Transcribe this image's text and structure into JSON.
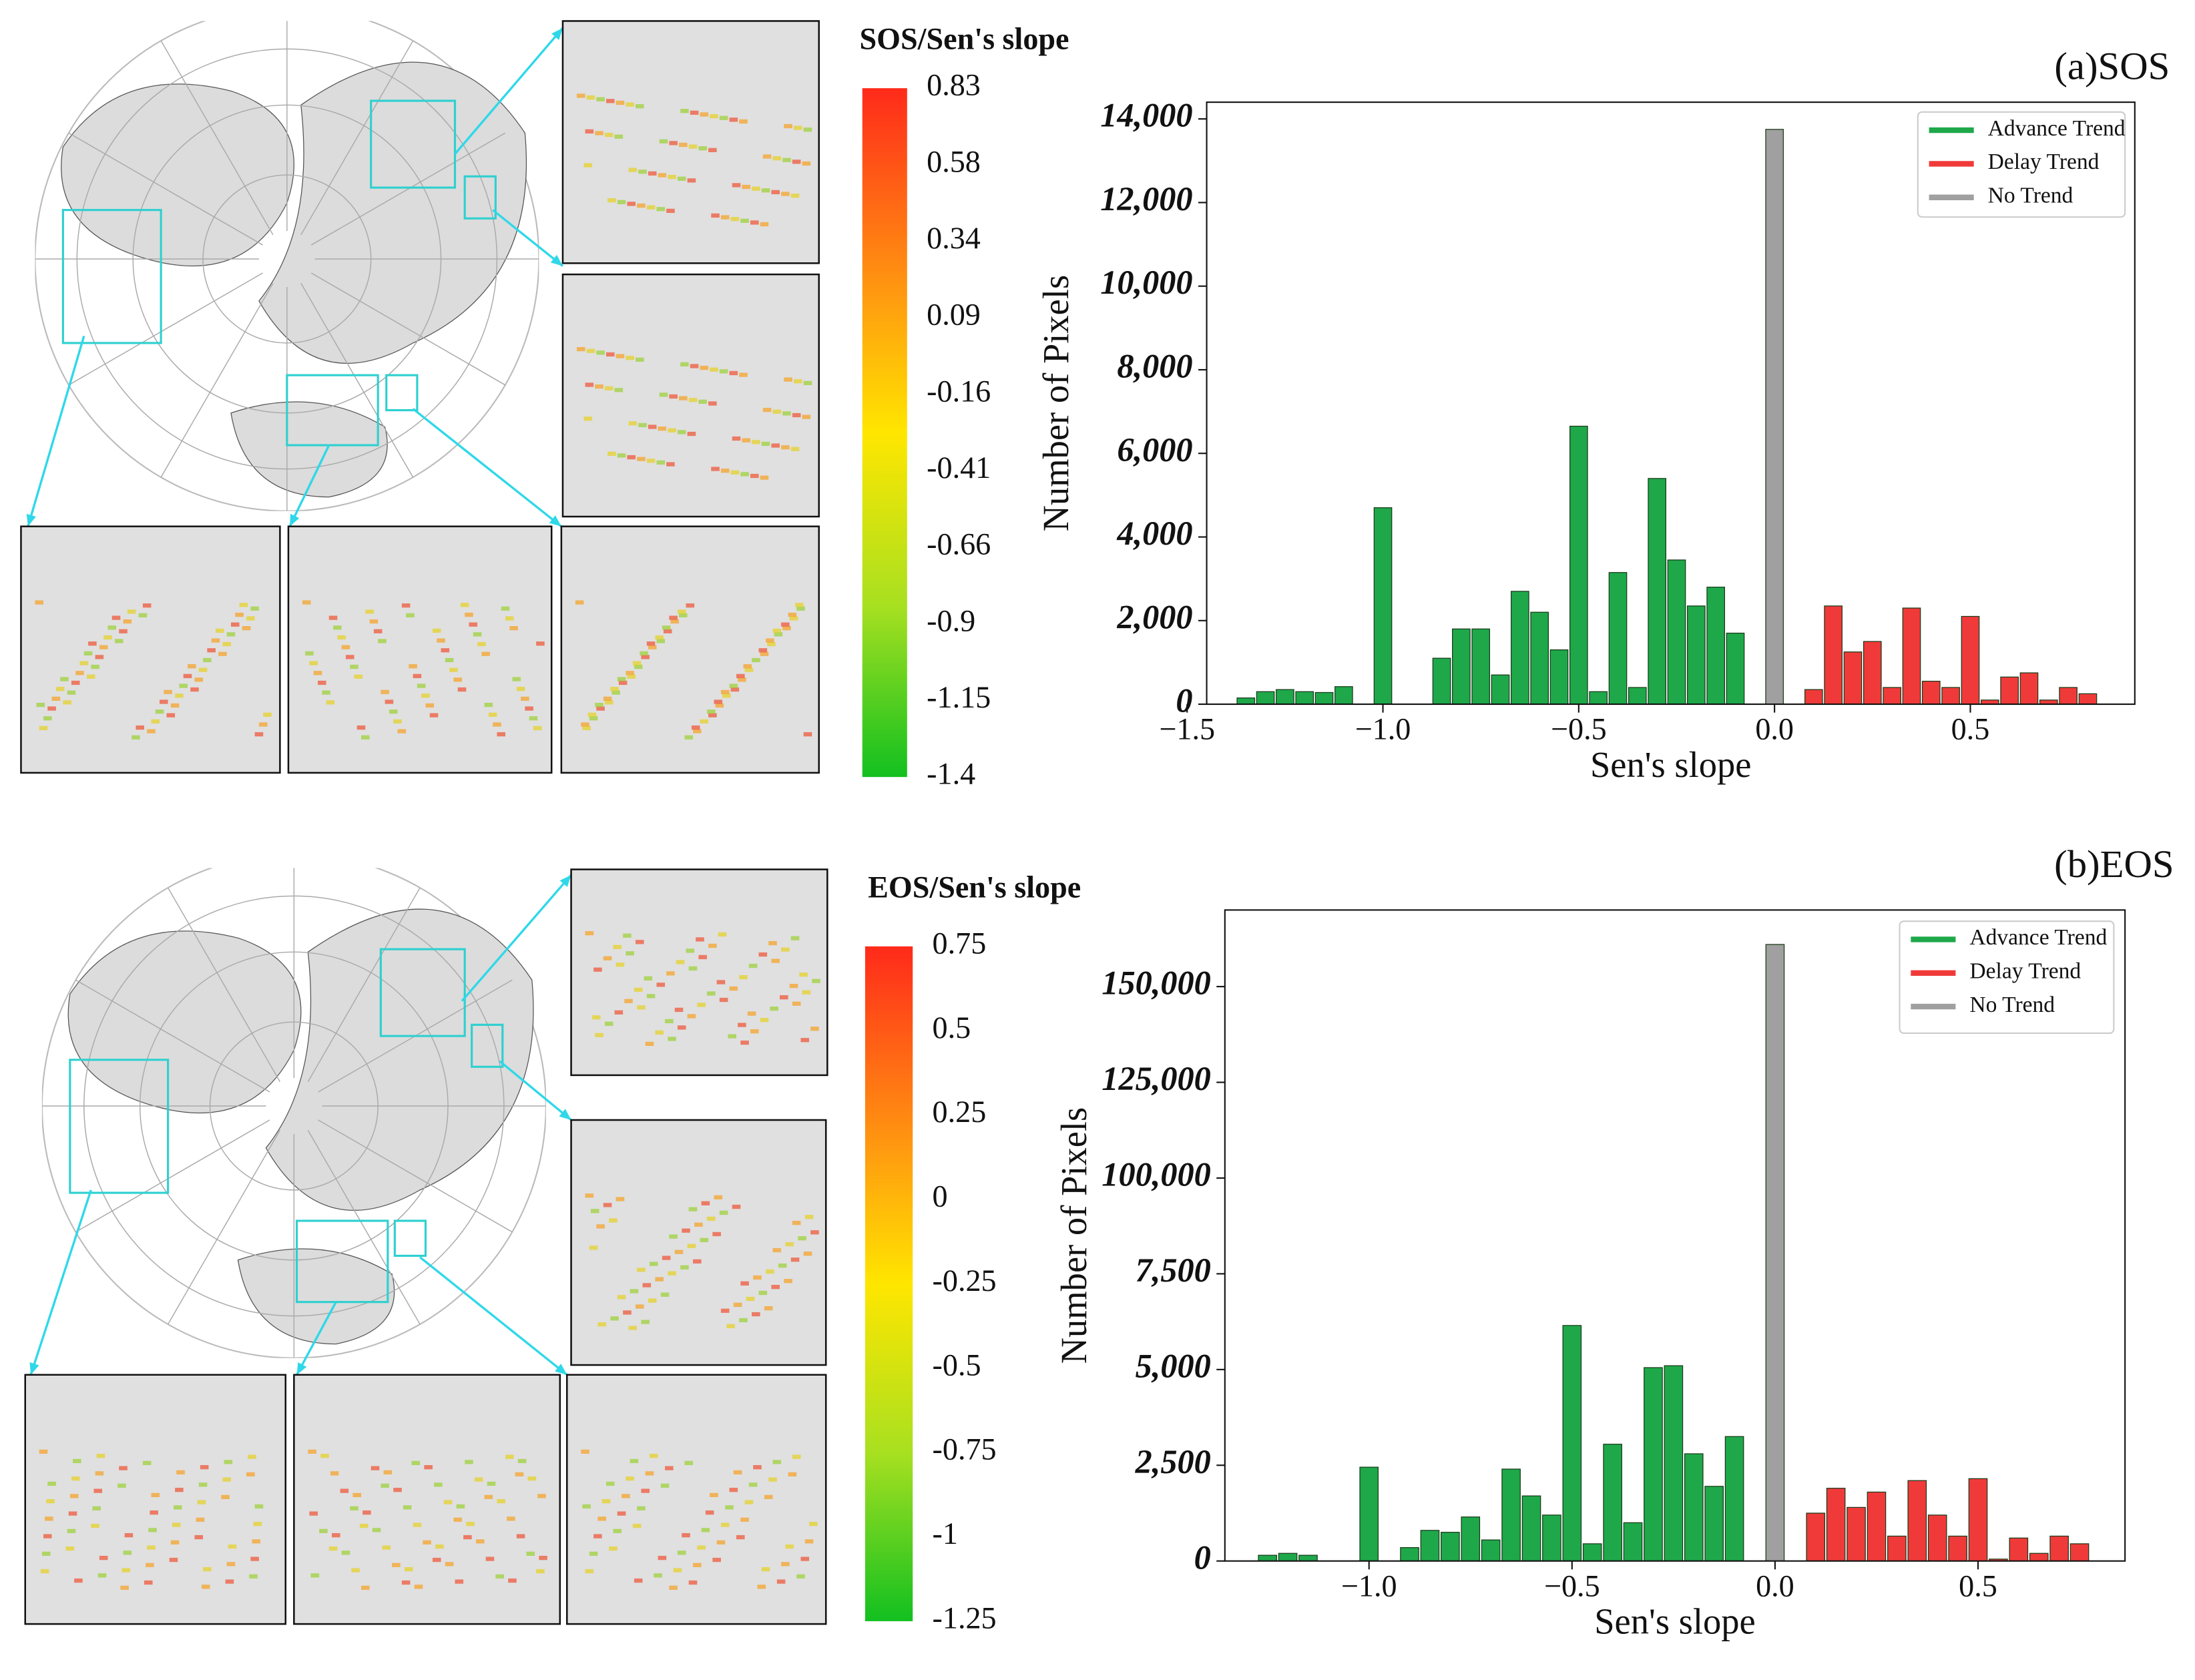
{
  "chart_data": [
    {
      "type": "bar",
      "title": "(a)SOS",
      "xlabel": "Sen's slope",
      "ylabel": "Number of Pixels",
      "xlim": [
        -1.45,
        0.92
      ],
      "xticks": [
        {
          "value": -1.5,
          "label": "−1.5"
        },
        {
          "value": -1.0,
          "label": "−1.0"
        },
        {
          "value": -0.5,
          "label": "−0.5"
        },
        {
          "value": 0.0,
          "label": "0.0"
        },
        {
          "value": 0.5,
          "label": "0.5"
        }
      ],
      "ylim": [
        0,
        14400
      ],
      "yticks": [
        0,
        {
          "value": 2000,
          "label": "2,000"
        },
        {
          "value": 4000,
          "label": "4,000"
        },
        {
          "value": 6000,
          "label": "6,000"
        },
        {
          "value": 8000,
          "label": "8,000"
        },
        {
          "value": 10000,
          "label": "10,000"
        },
        {
          "value": 12000,
          "label": "12,000"
        },
        {
          "value": 14000,
          "label": "14,000"
        }
      ],
      "legend": "upper right",
      "series": [
        {
          "name": "Advance Trend",
          "color": "#1ea84a",
          "x": [
            -1.35,
            -1.3,
            -1.25,
            -1.2,
            -1.15,
            -1.1,
            -1.0,
            -0.85,
            -0.8,
            -0.75,
            -0.7,
            -0.65,
            -0.6,
            -0.55,
            -0.5,
            -0.45,
            -0.4,
            -0.35,
            -0.3,
            -0.25,
            -0.2,
            -0.15,
            -0.1
          ],
          "values": [
            150,
            300,
            350,
            300,
            280,
            420,
            4700,
            1100,
            1800,
            1800,
            700,
            2700,
            2200,
            1300,
            6650,
            300,
            3150,
            400,
            5400,
            3450,
            2350,
            2800,
            1700
          ]
        },
        {
          "name": "Delay Trend",
          "color": "#f03a3a",
          "x": [
            0.1,
            0.15,
            0.2,
            0.25,
            0.3,
            0.35,
            0.4,
            0.45,
            0.5,
            0.55,
            0.6,
            0.65,
            0.7,
            0.75,
            0.8
          ],
          "values": [
            350,
            2350,
            1250,
            1500,
            400,
            2300,
            550,
            400,
            2100,
            100,
            650,
            750,
            100,
            400,
            250
          ]
        },
        {
          "name": "No Trend",
          "color": "#a0a0a0",
          "x": [
            0.0
          ],
          "values": [
            13750
          ]
        }
      ]
    },
    {
      "type": "bar",
      "title": "(b)EOS",
      "xlabel": "Sen's slope",
      "ylabel": "Number of Pixels",
      "xlim": [
        -1.355,
        0.862
      ],
      "xticks": [
        {
          "value": -1.0,
          "label": "−1.0"
        },
        {
          "value": -0.5,
          "label": "−0.5"
        },
        {
          "value": 0.0,
          "label": "0.0"
        },
        {
          "value": 0.5,
          "label": "0.5"
        }
      ],
      "ylim": [
        0,
        170000
      ],
      "yticks": [
        0,
        {
          "value": 2500,
          "label": "2,500"
        },
        {
          "value": 5000,
          "label": "5,000"
        },
        {
          "value": 7500,
          "label": "7,500"
        },
        {
          "value": 100000,
          "label": "100,000"
        },
        {
          "value": 125000,
          "label": "125,000"
        },
        {
          "value": 150000,
          "label": "150,000"
        }
      ],
      "legend": "upper right",
      "series": [
        {
          "name": "Advance Trend",
          "color": "#1ea84a",
          "x": [
            -1.25,
            -1.2,
            -1.15,
            -1.0,
            -0.9,
            -0.85,
            -0.8,
            -0.75,
            -0.7,
            -0.65,
            -0.6,
            -0.55,
            -0.5,
            -0.45,
            -0.4,
            -0.35,
            -0.3,
            -0.25,
            -0.2,
            -0.15,
            -0.1
          ],
          "values": [
            150,
            200,
            150,
            2450,
            350,
            800,
            750,
            1150,
            550,
            2400,
            1700,
            1200,
            6150,
            450,
            3050,
            1000,
            5050,
            5100,
            2800,
            1950,
            3250
          ]
        },
        {
          "name": "Delay Trend",
          "color": "#f03a3a",
          "x": [
            0.1,
            0.15,
            0.2,
            0.25,
            0.3,
            0.35,
            0.4,
            0.45,
            0.5,
            0.55,
            0.6,
            0.65,
            0.7,
            0.75
          ],
          "values": [
            1250,
            1900,
            1400,
            1800,
            650,
            2100,
            1200,
            650,
            2150,
            50,
            600,
            200,
            650,
            450
          ]
        },
        {
          "name": "No Trend",
          "color": "#a0a0a0",
          "x": [
            0.0
          ],
          "values": [
            161000
          ]
        }
      ]
    }
  ],
  "colorbars": [
    {
      "title": "SOS/Sen's slope",
      "labels": [
        "0.83",
        "0.58",
        "0.34",
        "0.09",
        "-0.16",
        "-0.41",
        "-0.66",
        "-0.9",
        "-1.15",
        "-1.4"
      ]
    },
    {
      "title": "EOS/Sen's slope",
      "labels": [
        "0.75",
        "0.5",
        "0.25",
        "0",
        "-0.25",
        "-0.5",
        "-0.75",
        "-1",
        "-1.25"
      ]
    }
  ]
}
